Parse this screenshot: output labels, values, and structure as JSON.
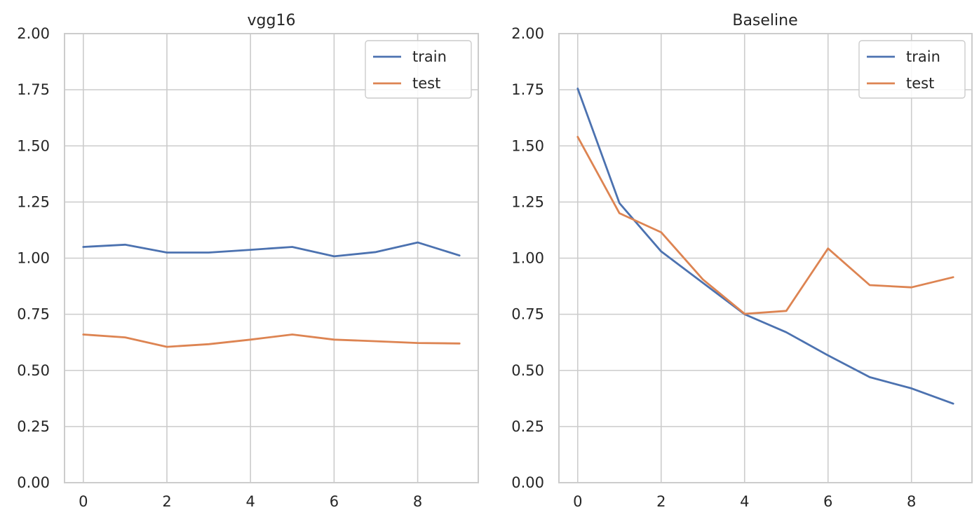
{
  "chart_data": [
    {
      "type": "line",
      "title": "vgg16",
      "xlabel": "",
      "ylabel": "",
      "xlim": [
        -0.45,
        9.45
      ],
      "ylim": [
        0,
        2
      ],
      "xticks": [
        0,
        2,
        4,
        6,
        8
      ],
      "xtick_labels": [
        "0",
        "2",
        "4",
        "6",
        "8"
      ],
      "yticks": [
        0,
        0.25,
        0.5,
        0.75,
        1.0,
        1.25,
        1.5,
        1.75,
        2.0
      ],
      "ytick_labels": [
        "0.00",
        "0.25",
        "0.50",
        "0.75",
        "1.00",
        "1.25",
        "1.50",
        "1.75",
        "2.00"
      ],
      "grid": true,
      "legend_position": "top-right",
      "x": [
        0,
        1,
        2,
        3,
        4,
        5,
        6,
        7,
        8,
        9
      ],
      "series": [
        {
          "name": "train",
          "color": "#4c72b0",
          "values": [
            1.05,
            1.06,
            1.025,
            1.025,
            1.037,
            1.05,
            1.008,
            1.027,
            1.07,
            1.012
          ]
        },
        {
          "name": "test",
          "color": "#dd8452",
          "values": [
            0.66,
            0.647,
            0.605,
            0.617,
            0.637,
            0.66,
            0.637,
            0.63,
            0.622,
            0.62
          ]
        }
      ]
    },
    {
      "type": "line",
      "title": "Baseline",
      "xlabel": "",
      "ylabel": "",
      "xlim": [
        -0.45,
        9.45
      ],
      "ylim": [
        0,
        2
      ],
      "xticks": [
        0,
        2,
        4,
        6,
        8
      ],
      "xtick_labels": [
        "0",
        "2",
        "4",
        "6",
        "8"
      ],
      "yticks": [
        0,
        0.25,
        0.5,
        0.75,
        1.0,
        1.25,
        1.5,
        1.75,
        2.0
      ],
      "ytick_labels": [
        "0.00",
        "0.25",
        "0.50",
        "0.75",
        "1.00",
        "1.25",
        "1.50",
        "1.75",
        "2.00"
      ],
      "grid": true,
      "legend_position": "top-right",
      "x": [
        0,
        1,
        2,
        3,
        4,
        5,
        6,
        7,
        8,
        9
      ],
      "series": [
        {
          "name": "train",
          "color": "#4c72b0",
          "values": [
            1.755,
            1.245,
            1.03,
            0.89,
            0.75,
            0.67,
            0.567,
            0.47,
            0.42,
            0.352
          ]
        },
        {
          "name": "test",
          "color": "#dd8452",
          "values": [
            1.54,
            1.2,
            1.115,
            0.905,
            0.752,
            0.765,
            1.043,
            0.88,
            0.87,
            0.915
          ]
        }
      ]
    }
  ]
}
